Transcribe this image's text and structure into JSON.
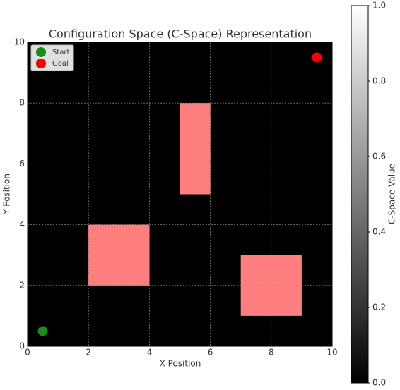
{
  "chart_data": {
    "type": "scatter",
    "title": "Configuration Space (C-Space) Representation",
    "x_label": "X Position",
    "y_label": "Y Position",
    "xlim": [
      0,
      10
    ],
    "ylim": [
      0,
      10
    ],
    "xticks": [
      0,
      2,
      4,
      6,
      8,
      10
    ],
    "yticks": [
      0,
      2,
      4,
      6,
      8,
      10
    ],
    "grid": true,
    "background": "#000000",
    "legend": "upper left",
    "obstacles": {
      "color": "#ff7f7f",
      "x0": [
        2,
        5,
        7
      ],
      "x1": [
        4,
        6,
        9
      ],
      "y0": [
        2,
        5,
        1
      ],
      "y1": [
        4,
        8,
        3
      ]
    },
    "series": [
      {
        "name": "Start",
        "color": "#1a8a1a",
        "x": [
          0.5
        ],
        "values": [
          0.5
        ]
      },
      {
        "name": "Goal",
        "color": "#ff0000",
        "x": [
          9.5
        ],
        "values": [
          9.5
        ]
      }
    ],
    "colorbar": {
      "label": "C-Space Value",
      "lim": [
        0,
        1
      ],
      "colors": [
        "#000000",
        "#ffffff"
      ],
      "ticks": [
        {
          "value": 0,
          "label": "0.0"
        },
        {
          "value": 0.2,
          "label": "0.2"
        },
        {
          "value": 0.4,
          "label": "0.4"
        },
        {
          "value": 0.6,
          "label": "0.6"
        },
        {
          "value": 0.8,
          "label": "0.8"
        },
        {
          "value": 1,
          "label": "1.0"
        }
      ]
    }
  }
}
